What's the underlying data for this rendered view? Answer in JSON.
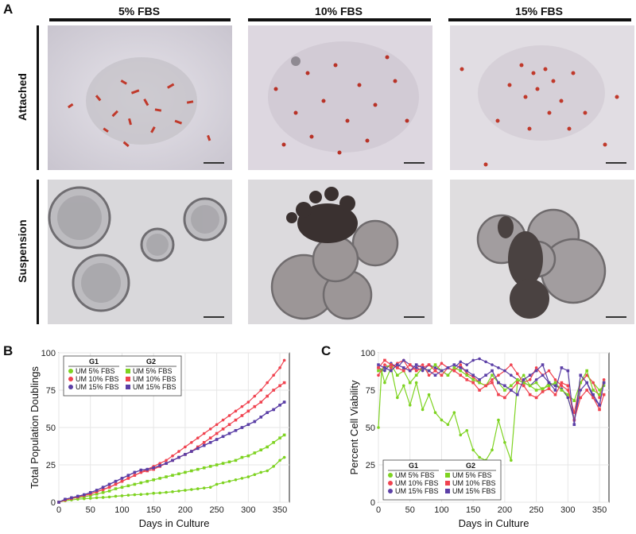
{
  "panel_a": {
    "letter": "A",
    "columns": [
      "5% FBS",
      "10% FBS",
      "15% FBS"
    ],
    "rows": [
      "Attached",
      "Suspension"
    ]
  },
  "panel_b": {
    "letter": "B"
  },
  "panel_c": {
    "letter": "C"
  },
  "colors": {
    "green": "#7ed321",
    "red": "#f0424f",
    "purple": "#5b3fa6"
  },
  "chart_data": [
    {
      "type": "line",
      "xlabel": "Days in Culture",
      "ylabel": "Total Population Doublings",
      "xlim": [
        0,
        365
      ],
      "ylim": [
        0,
        100
      ],
      "xticks": [
        0,
        50,
        100,
        150,
        200,
        250,
        300,
        350
      ],
      "yticks": [
        0,
        25,
        50,
        75,
        100
      ],
      "grid": true,
      "legend": {
        "placement": "top-left",
        "groups": [
          {
            "title": "G1",
            "entries": [
              "UM  5% FBS",
              "UM 10% FBS",
              "UM 15% FBS"
            ]
          },
          {
            "title": "G2",
            "entries": [
              "UM  5% FBS",
              "UM 10% FBS",
              "UM 15% FBS"
            ]
          }
        ]
      },
      "series": [
        {
          "group": "G1",
          "label": "UM  5% FBS",
          "color": "green",
          "marker": "circle",
          "x": [
            0,
            10,
            20,
            30,
            40,
            50,
            60,
            70,
            80,
            90,
            100,
            110,
            120,
            130,
            140,
            150,
            160,
            170,
            180,
            190,
            200,
            210,
            220,
            230,
            240,
            250,
            260,
            270,
            280,
            290,
            300,
            310,
            320,
            330,
            340,
            350,
            357
          ],
          "y": [
            0,
            1,
            1.5,
            2,
            2.3,
            2.6,
            3,
            3.2,
            3.5,
            4,
            4.3,
            4.7,
            5,
            5.2,
            5.5,
            6,
            6.2,
            6.6,
            7,
            7.5,
            8,
            8.5,
            9,
            9.5,
            10,
            12,
            13,
            14,
            15,
            16,
            17,
            18.5,
            20,
            21,
            24,
            28,
            30
          ]
        },
        {
          "group": "G1",
          "label": "UM 10% FBS",
          "color": "red",
          "marker": "circle",
          "x": [
            0,
            10,
            20,
            30,
            40,
            50,
            60,
            70,
            80,
            90,
            100,
            110,
            120,
            130,
            140,
            150,
            160,
            170,
            180,
            190,
            200,
            210,
            220,
            230,
            240,
            250,
            260,
            270,
            280,
            290,
            300,
            310,
            320,
            330,
            340,
            350,
            357
          ],
          "y": [
            0,
            1.5,
            2.5,
            3.5,
            4.5,
            5.5,
            7,
            8.5,
            10,
            12,
            14,
            16,
            18,
            20,
            22,
            24,
            26,
            28,
            31,
            34,
            37,
            40,
            43,
            46,
            49,
            52,
            55,
            58,
            61,
            64,
            67,
            71,
            75,
            80,
            85,
            90,
            95
          ]
        },
        {
          "group": "G1",
          "label": "UM 15% FBS",
          "color": "purple",
          "marker": "circle",
          "x": [
            0,
            10,
            20,
            30,
            40,
            50,
            60,
            70,
            80,
            90,
            100,
            110,
            120,
            130,
            140,
            150,
            160,
            170,
            180,
            190,
            200,
            210,
            220,
            230,
            240,
            250,
            260,
            270,
            280,
            290,
            300,
            310,
            320,
            330,
            340,
            350,
            357
          ],
          "y": [
            0,
            2,
            3,
            4,
            5,
            6.5,
            8,
            10,
            12,
            14,
            16,
            18,
            20,
            21.5,
            22,
            23,
            24.5,
            26,
            28,
            30,
            32,
            34,
            36,
            38,
            40,
            42,
            44,
            46,
            48,
            50,
            52,
            54,
            57,
            60,
            62,
            65,
            67
          ]
        },
        {
          "group": "G2",
          "label": "UM  5% FBS",
          "color": "green",
          "marker": "square",
          "x": [
            0,
            10,
            20,
            30,
            40,
            50,
            60,
            70,
            80,
            90,
            100,
            110,
            120,
            130,
            140,
            150,
            160,
            170,
            180,
            190,
            200,
            210,
            220,
            230,
            240,
            250,
            260,
            270,
            280,
            290,
            300,
            310,
            320,
            330,
            340,
            350,
            357
          ],
          "y": [
            0,
            1.5,
            2.5,
            3,
            3.5,
            4.5,
            5.5,
            6.5,
            7.5,
            9,
            10,
            11,
            12,
            13,
            14,
            15,
            16,
            17,
            18,
            19,
            20,
            21,
            22,
            23,
            24,
            25,
            26,
            27,
            28,
            30,
            31,
            33,
            35,
            37,
            40,
            43,
            45
          ]
        },
        {
          "group": "G2",
          "label": "UM 10% FBS",
          "color": "red",
          "marker": "square",
          "x": [
            0,
            10,
            20,
            30,
            40,
            50,
            60,
            70,
            80,
            90,
            100,
            110,
            120,
            130,
            140,
            150,
            160,
            170,
            180,
            190,
            200,
            210,
            220,
            230,
            240,
            250,
            260,
            270,
            280,
            290,
            300,
            310,
            320,
            330,
            340,
            350,
            357
          ],
          "y": [
            0,
            1.5,
            2.5,
            3.5,
            4.5,
            5.5,
            7,
            8.5,
            10,
            12,
            14,
            16,
            18,
            20,
            21,
            22,
            24,
            26,
            28,
            30,
            32,
            34,
            37,
            40,
            43,
            46,
            49,
            52,
            55,
            58,
            61,
            64,
            67,
            71,
            75,
            78,
            80
          ]
        },
        {
          "group": "G2",
          "label": "UM 15% FBS",
          "color": "purple",
          "marker": "square",
          "x": [
            0,
            10,
            20,
            30,
            40,
            50,
            60,
            70,
            80,
            90,
            100,
            110,
            120,
            130,
            140,
            150,
            160,
            170,
            180,
            190,
            200,
            210,
            220,
            230,
            240,
            250,
            260,
            270,
            280,
            290,
            300,
            310,
            320,
            330,
            340,
            350,
            357
          ],
          "y": [
            0,
            2,
            3,
            4,
            5,
            6.5,
            8,
            10,
            12,
            14,
            16,
            18,
            20,
            21.5,
            22,
            23,
            24.5,
            26,
            28,
            30,
            32,
            34,
            36,
            38,
            40,
            42,
            44,
            46,
            48,
            50,
            52,
            54,
            57,
            60,
            62,
            65,
            67
          ]
        }
      ]
    },
    {
      "type": "line",
      "xlabel": "Days in Culture",
      "ylabel": "Percent Cell Viability",
      "xlim": [
        0,
        365
      ],
      "ylim": [
        0,
        100
      ],
      "xticks": [
        0,
        50,
        100,
        150,
        200,
        250,
        300,
        350
      ],
      "yticks": [
        0,
        25,
        50,
        75,
        100
      ],
      "grid": true,
      "legend": {
        "placement": "bottom-left",
        "groups": [
          {
            "title": "G1",
            "entries": [
              "UM  5% FBS",
              "UM 10% FBS",
              "UM 15% FBS"
            ]
          },
          {
            "title": "G2",
            "entries": [
              "UM  5% FBS",
              "UM 10% FBS",
              "UM 15% FBS"
            ]
          }
        ]
      },
      "series": [
        {
          "group": "G1",
          "label": "UM  5% FBS",
          "color": "green",
          "marker": "circle",
          "x": [
            0,
            5,
            10,
            20,
            30,
            40,
            50,
            60,
            70,
            80,
            90,
            100,
            110,
            120,
            130,
            140,
            150,
            160,
            170,
            180,
            190,
            200,
            210,
            220,
            230,
            240,
            250,
            260,
            270,
            280,
            290,
            300,
            310,
            320,
            330,
            340,
            350,
            357
          ],
          "y": [
            50,
            88,
            80,
            90,
            70,
            78,
            65,
            80,
            62,
            72,
            60,
            55,
            52,
            60,
            45,
            48,
            35,
            30,
            28,
            35,
            55,
            40,
            28,
            80,
            85,
            78,
            80,
            75,
            80,
            78,
            76,
            70,
            55,
            80,
            85,
            80,
            75,
            78
          ]
        },
        {
          "group": "G1",
          "label": "UM 10% FBS",
          "color": "red",
          "marker": "circle",
          "x": [
            0,
            10,
            20,
            30,
            40,
            50,
            60,
            70,
            80,
            90,
            100,
            110,
            120,
            130,
            140,
            150,
            160,
            170,
            180,
            190,
            200,
            210,
            220,
            230,
            240,
            250,
            260,
            270,
            280,
            290,
            300,
            310,
            320,
            330,
            340,
            350,
            357
          ],
          "y": [
            85,
            92,
            90,
            93,
            95,
            88,
            90,
            92,
            85,
            88,
            93,
            90,
            88,
            92,
            86,
            84,
            80,
            78,
            82,
            85,
            88,
            92,
            86,
            80,
            82,
            90,
            85,
            88,
            82,
            78,
            75,
            60,
            80,
            85,
            80,
            70,
            82
          ]
        },
        {
          "group": "G1",
          "label": "UM 15% FBS",
          "color": "purple",
          "marker": "circle",
          "x": [
            0,
            10,
            20,
            30,
            40,
            50,
            60,
            70,
            80,
            90,
            100,
            110,
            120,
            130,
            140,
            150,
            160,
            170,
            180,
            190,
            200,
            210,
            220,
            230,
            240,
            250,
            260,
            270,
            280,
            290,
            300,
            310,
            320,
            330,
            340,
            350,
            357
          ],
          "y": [
            90,
            88,
            93,
            90,
            95,
            92,
            90,
            88,
            92,
            90,
            88,
            85,
            90,
            94,
            92,
            95,
            96,
            94,
            92,
            90,
            88,
            85,
            82,
            80,
            78,
            82,
            85,
            80,
            78,
            76,
            70,
            55,
            75,
            80,
            70,
            65,
            80
          ]
        },
        {
          "group": "G2",
          "label": "UM  5% FBS",
          "color": "green",
          "marker": "square",
          "x": [
            0,
            10,
            20,
            30,
            40,
            50,
            60,
            70,
            80,
            90,
            100,
            110,
            120,
            130,
            140,
            150,
            160,
            170,
            180,
            190,
            200,
            210,
            220,
            230,
            240,
            250,
            260,
            270,
            280,
            290,
            300,
            310,
            320,
            330,
            340,
            350,
            357
          ],
          "y": [
            88,
            90,
            92,
            85,
            88,
            80,
            85,
            90,
            88,
            92,
            88,
            85,
            90,
            88,
            85,
            82,
            80,
            78,
            85,
            80,
            75,
            78,
            82,
            80,
            78,
            75,
            76,
            78,
            80,
            75,
            72,
            68,
            80,
            88,
            75,
            72,
            80
          ]
        },
        {
          "group": "G2",
          "label": "UM 10% FBS",
          "color": "red",
          "marker": "square",
          "x": [
            0,
            10,
            20,
            30,
            40,
            50,
            60,
            70,
            80,
            90,
            100,
            110,
            120,
            130,
            140,
            150,
            160,
            170,
            180,
            190,
            200,
            210,
            220,
            230,
            240,
            250,
            260,
            270,
            280,
            290,
            300,
            310,
            320,
            330,
            340,
            350,
            357
          ],
          "y": [
            90,
            95,
            92,
            90,
            88,
            92,
            88,
            90,
            92,
            88,
            85,
            90,
            88,
            85,
            82,
            80,
            75,
            78,
            80,
            72,
            70,
            75,
            80,
            78,
            72,
            70,
            74,
            76,
            72,
            80,
            78,
            55,
            70,
            75,
            70,
            62,
            72
          ]
        },
        {
          "group": "G2",
          "label": "UM 15% FBS",
          "color": "purple",
          "marker": "square",
          "x": [
            0,
            10,
            20,
            30,
            40,
            50,
            60,
            70,
            80,
            90,
            100,
            110,
            120,
            130,
            140,
            150,
            160,
            170,
            180,
            190,
            200,
            210,
            220,
            230,
            240,
            250,
            260,
            270,
            280,
            290,
            300,
            310,
            320,
            330,
            340,
            350,
            357
          ],
          "y": [
            92,
            90,
            88,
            92,
            90,
            88,
            92,
            90,
            88,
            85,
            88,
            90,
            92,
            90,
            88,
            85,
            82,
            85,
            88,
            80,
            78,
            75,
            72,
            82,
            85,
            88,
            92,
            80,
            75,
            90,
            88,
            52,
            85,
            80,
            72,
            65,
            80
          ]
        }
      ]
    }
  ]
}
